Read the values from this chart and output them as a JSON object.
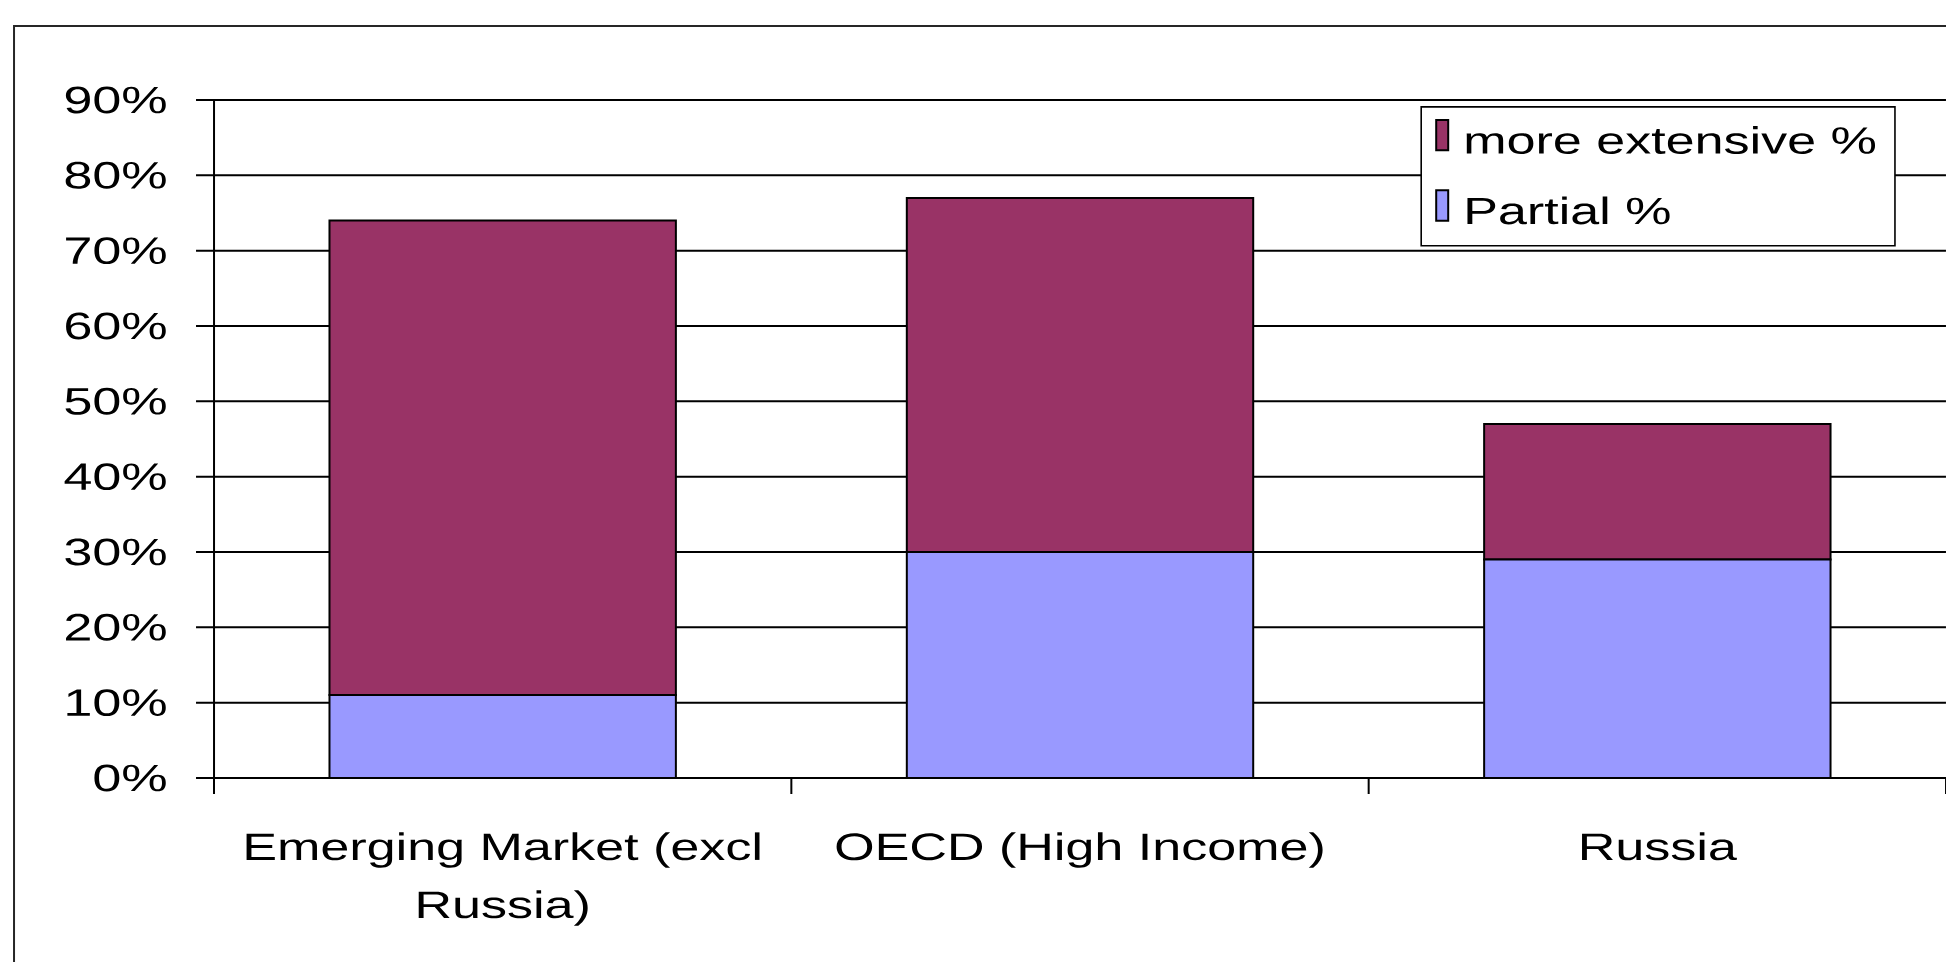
{
  "chart_data": {
    "type": "bar",
    "stacked": true,
    "categories": [
      "Emerging Market (excl Russia)",
      "OECD (High Income)",
      "Russia"
    ],
    "series": [
      {
        "name": "Partial %",
        "color": "#9999ff",
        "values": [
          11,
          30,
          29
        ]
      },
      {
        "name": "more extensive %",
        "color": "#993366",
        "values": [
          63,
          47,
          18
        ]
      }
    ],
    "ylim": [
      0,
      90
    ],
    "yticks": [
      {
        "value": 0,
        "label": "0%"
      },
      {
        "value": 10,
        "label": "10%"
      },
      {
        "value": 20,
        "label": "20%"
      },
      {
        "value": 30,
        "label": "30%"
      },
      {
        "value": 40,
        "label": "40%"
      },
      {
        "value": 50,
        "label": "50%"
      },
      {
        "value": 60,
        "label": "60%"
      },
      {
        "value": 70,
        "label": "70%"
      },
      {
        "value": 80,
        "label": "80%"
      },
      {
        "value": 90,
        "label": "90%"
      }
    ],
    "grid": "y",
    "legend": "top right"
  }
}
